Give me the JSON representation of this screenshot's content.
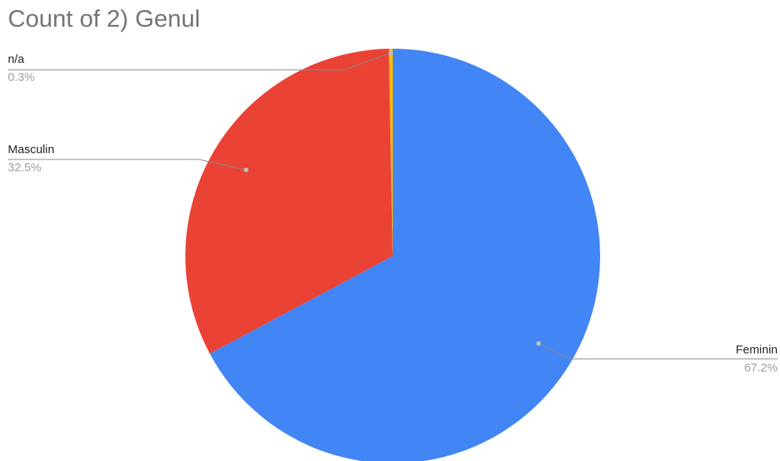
{
  "chart_data": {
    "type": "pie",
    "title": "Count of 2) Genul",
    "slices": [
      {
        "label": "Feminin",
        "value": 67.2,
        "display": "67.2%",
        "color": "#4285f4"
      },
      {
        "label": "Masculin",
        "value": 32.5,
        "display": "32.5%",
        "color": "#ea4335"
      },
      {
        "label": "n/a",
        "value": 0.3,
        "display": "0.3%",
        "color": "#fbbc04"
      }
    ],
    "start_angle": "12 o'clock",
    "direction": "clockwise",
    "legend": "none (labels with leader lines)"
  }
}
